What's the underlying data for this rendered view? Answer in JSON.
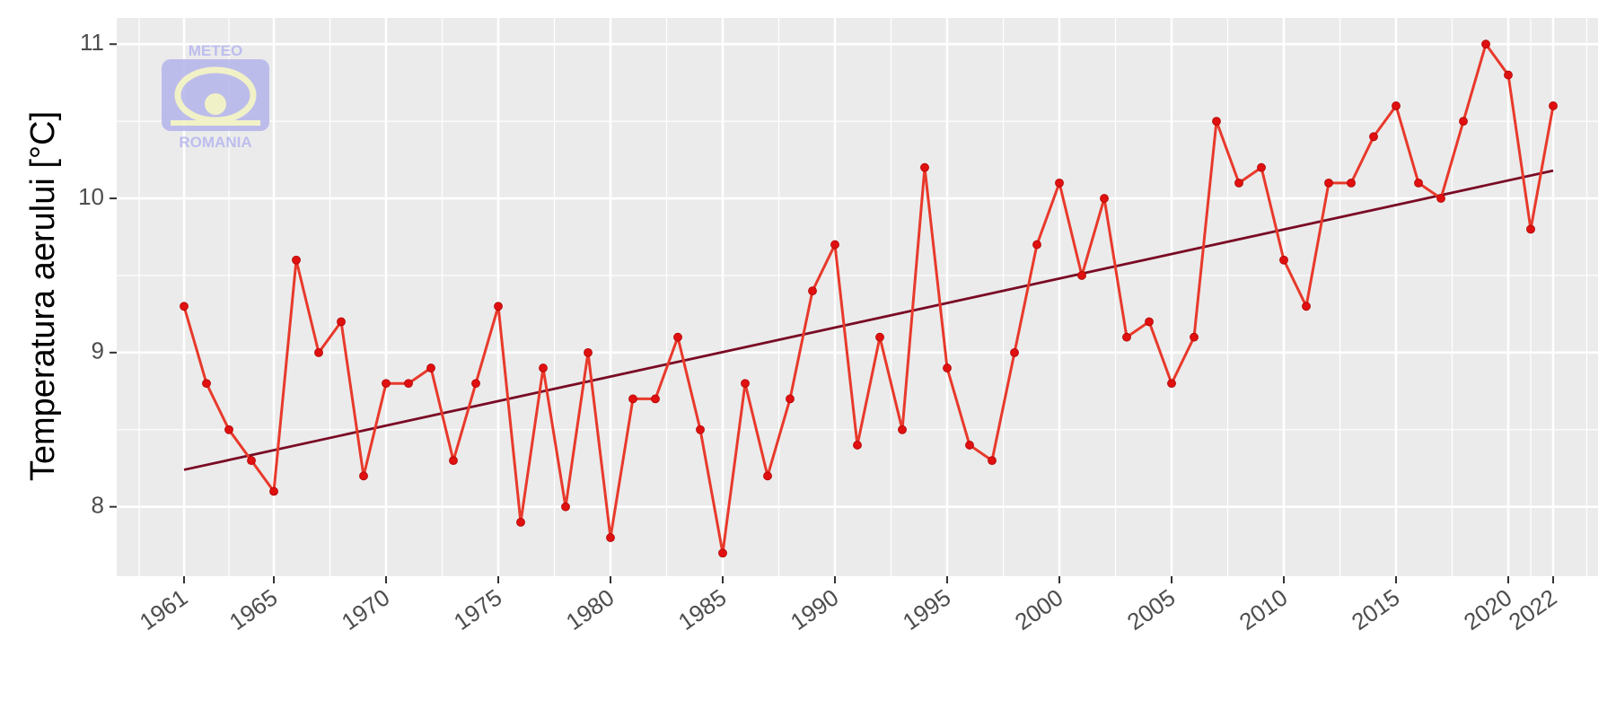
{
  "chart_data": {
    "type": "line",
    "xlabel": "",
    "ylabel": "Temperatura aerului [°C]",
    "x": [
      1961,
      1962,
      1963,
      1964,
      1965,
      1966,
      1967,
      1968,
      1969,
      1970,
      1971,
      1972,
      1973,
      1974,
      1975,
      1976,
      1977,
      1978,
      1979,
      1980,
      1981,
      1982,
      1983,
      1984,
      1985,
      1986,
      1987,
      1988,
      1989,
      1990,
      1991,
      1992,
      1993,
      1994,
      1995,
      1996,
      1997,
      1998,
      1999,
      2000,
      2001,
      2002,
      2003,
      2004,
      2005,
      2006,
      2007,
      2008,
      2009,
      2010,
      2011,
      2012,
      2013,
      2014,
      2015,
      2016,
      2017,
      2018,
      2019,
      2020,
      2021,
      2022
    ],
    "series": [
      {
        "values": [
          9.3,
          8.8,
          8.5,
          8.3,
          8.1,
          9.6,
          9.0,
          9.2,
          8.2,
          8.8,
          8.8,
          8.9,
          8.3,
          8.8,
          9.3,
          7.9,
          8.9,
          8.0,
          9.0,
          7.8,
          8.7,
          8.7,
          9.1,
          8.5,
          7.7,
          8.8,
          8.2,
          8.7,
          9.4,
          9.7,
          8.4,
          9.1,
          8.5,
          10.2,
          8.9,
          8.4,
          8.3,
          9.0,
          9.7,
          10.1,
          9.5,
          10.0,
          9.1,
          9.2,
          8.8,
          9.1,
          10.5,
          10.1,
          10.2,
          9.6,
          9.3,
          10.1,
          10.1,
          10.4,
          10.6,
          10.1,
          10.0,
          10.5,
          11.0,
          10.8,
          9.8,
          10.6
        ]
      }
    ],
    "trend": {
      "start": [
        1961,
        8.24
      ],
      "end": [
        2022,
        10.18
      ]
    },
    "xticks": [
      "1961",
      "1965",
      "1970",
      "1975",
      "1980",
      "1985",
      "1990",
      "1995",
      "2000",
      "2005",
      "2010",
      "2015",
      "2020",
      "2022"
    ],
    "yticks": [
      "8",
      "9",
      "10",
      "11"
    ],
    "xlim": [
      1958,
      2024
    ],
    "ylim": [
      7.55,
      11.17
    ],
    "grid": true,
    "legend": "none",
    "colors": {
      "line": "#e8392b",
      "points": "#e01010",
      "trend": "#7a0a24",
      "panel": "#ebebeb",
      "grid": "#ffffff"
    }
  },
  "logo": {
    "top_text": "METEO",
    "bottom_text": "ROMANIA"
  }
}
